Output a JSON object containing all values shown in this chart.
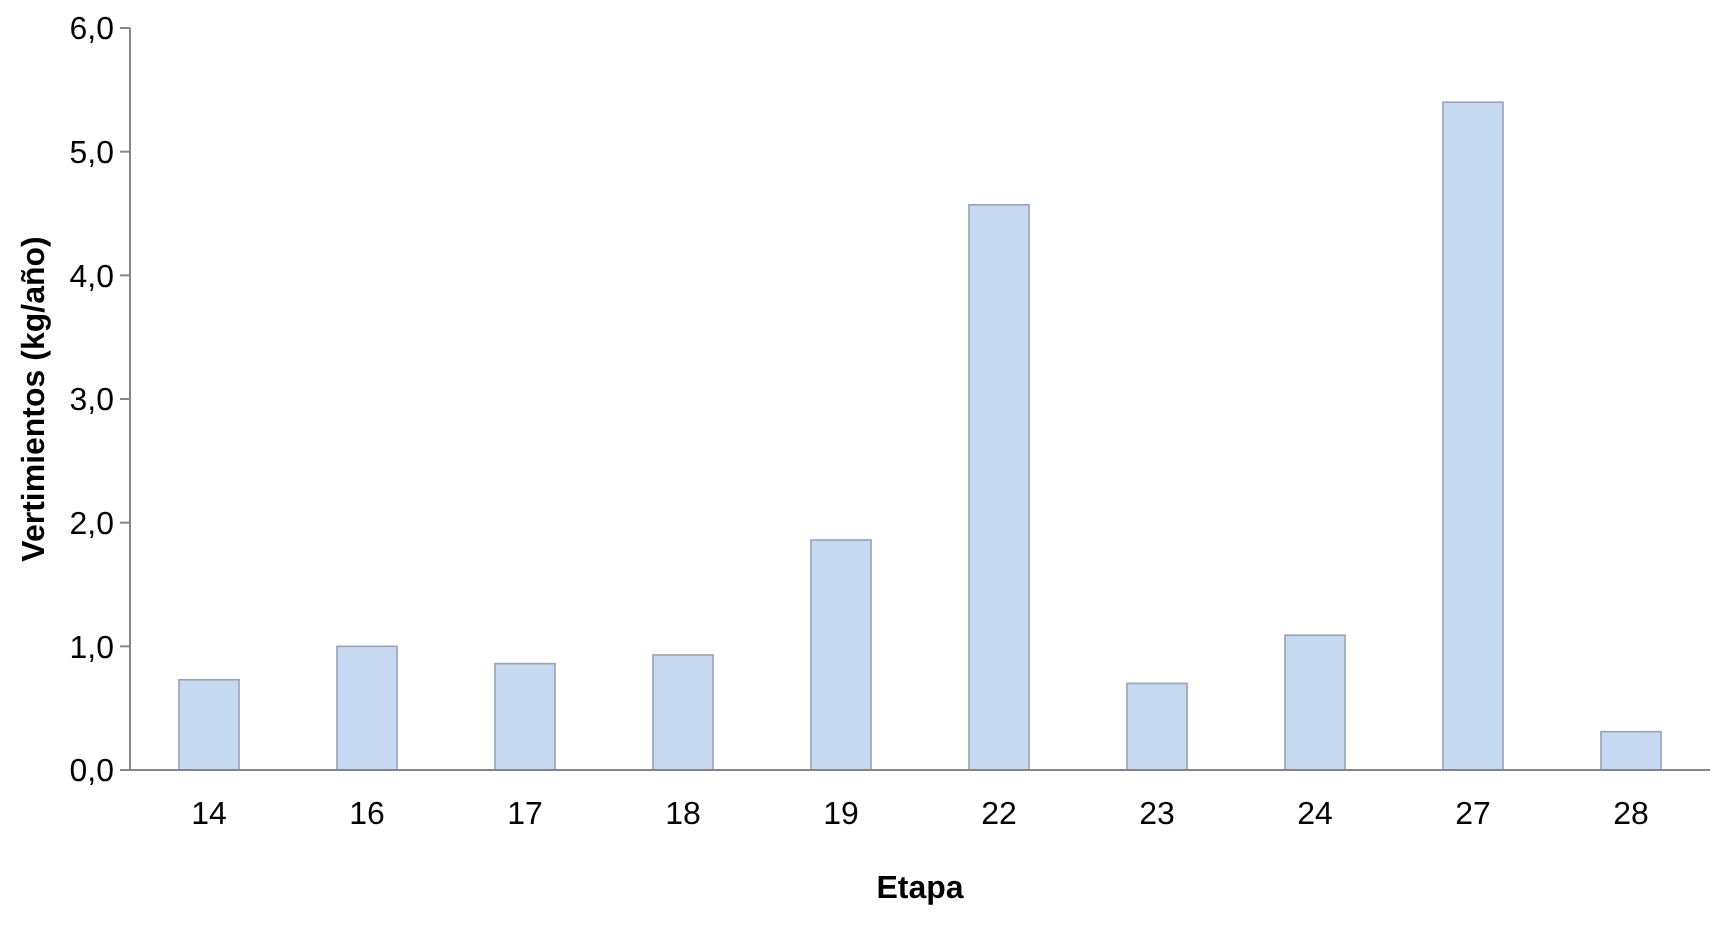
{
  "chart_data": {
    "type": "bar",
    "xlabel": "Etapa",
    "ylabel": "Vertimientos (kg/año)",
    "categories": [
      "14",
      "16",
      "17",
      "18",
      "19",
      "22",
      "23",
      "24",
      "27",
      "28"
    ],
    "values": [
      0.73,
      1.0,
      0.86,
      0.93,
      1.86,
      4.57,
      0.7,
      1.09,
      5.4,
      0.31
    ],
    "color": "#c6d9f1",
    "ylim": [
      0,
      6
    ],
    "yticks": [
      {
        "value": 0,
        "label": "0,0"
      },
      {
        "value": 1,
        "label": "1,0"
      },
      {
        "value": 2,
        "label": "2,0"
      },
      {
        "value": 3,
        "label": "3,0"
      },
      {
        "value": 4,
        "label": "4,0"
      },
      {
        "value": 5,
        "label": "5,0"
      },
      {
        "value": 6,
        "label": "6,0"
      }
    ],
    "grid": false
  }
}
